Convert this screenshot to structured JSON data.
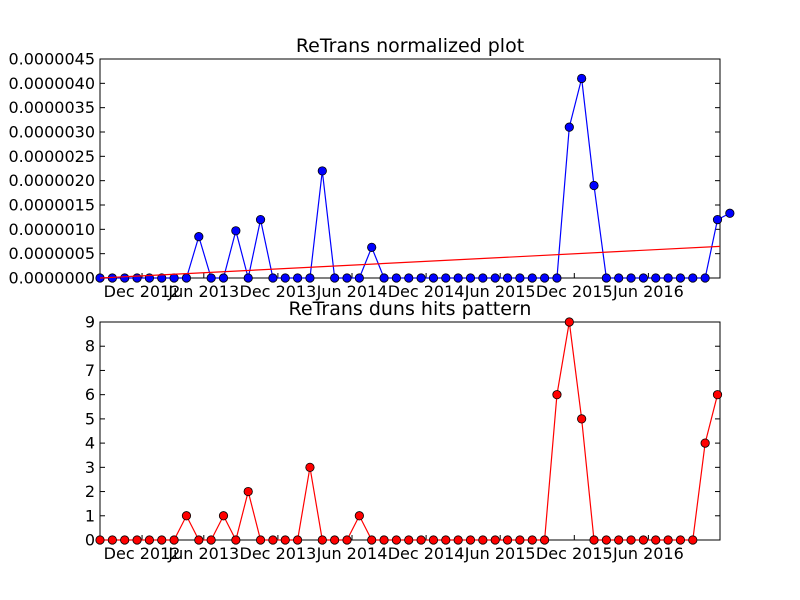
{
  "chart_data": [
    {
      "type": "line",
      "title": "ReTrans normalized plot",
      "x_tick_labels": [
        "Dec 2012",
        "Jun 2013",
        "Dec 2013",
        "Jun 2014",
        "Dec 2014",
        "Jun 2015",
        "Dec 2015",
        "Jun 2016"
      ],
      "y_tick_labels": [
        "0.0000000",
        "0.0000005",
        "0.0000010",
        "0.0000015",
        "0.0000020",
        "0.0000025",
        "0.0000030",
        "0.0000035",
        "0.0000040",
        "0.0000045"
      ],
      "ylim": [
        0,
        4.5e-06
      ],
      "grid": false,
      "series": [
        {
          "color": "#0000ff",
          "marker": "circle",
          "values": [
            0,
            0,
            0,
            0,
            0,
            0,
            0,
            0,
            8.5e-07,
            0,
            0,
            9.7e-07,
            0,
            1.2e-06,
            0,
            0,
            0,
            0,
            2.2e-06,
            0,
            0,
            0,
            6.3e-07,
            0,
            0,
            0,
            0,
            0,
            0,
            0,
            0,
            0,
            0,
            0,
            0,
            0,
            0,
            0,
            3.1e-06,
            4.1e-06,
            1.9e-06,
            0,
            0,
            0,
            0,
            0,
            0,
            0,
            0,
            0,
            1.2e-06,
            1.33e-06
          ]
        },
        {
          "color": "#ff0000",
          "marker": "none",
          "values": [
            0.0,
            6.5e-07
          ]
        }
      ]
    },
    {
      "type": "line",
      "title": "ReTrans duns hits pattern",
      "x_tick_labels": [
        "Dec 2012",
        "Jun 2013",
        "Dec 2013",
        "Jun 2014",
        "Dec 2014",
        "Jun 2015",
        "Dec 2015",
        "Jun 2016"
      ],
      "y_tick_labels": [
        "0",
        "1",
        "2",
        "3",
        "4",
        "5",
        "6",
        "7",
        "8",
        "9"
      ],
      "ylim": [
        0,
        9
      ],
      "grid": false,
      "series": [
        {
          "color": "#ff0000",
          "marker": "circle",
          "values": [
            0,
            0,
            0,
            0,
            0,
            0,
            0,
            1,
            0,
            0,
            1,
            0,
            2,
            0,
            0,
            0,
            0,
            3,
            0,
            0,
            0,
            1,
            0,
            0,
            0,
            0,
            0,
            0,
            0,
            0,
            0,
            0,
            0,
            0,
            0,
            0,
            0,
            6,
            9,
            5,
            0,
            0,
            0,
            0,
            0,
            0,
            0,
            0,
            0,
            4,
            6
          ]
        }
      ]
    }
  ]
}
